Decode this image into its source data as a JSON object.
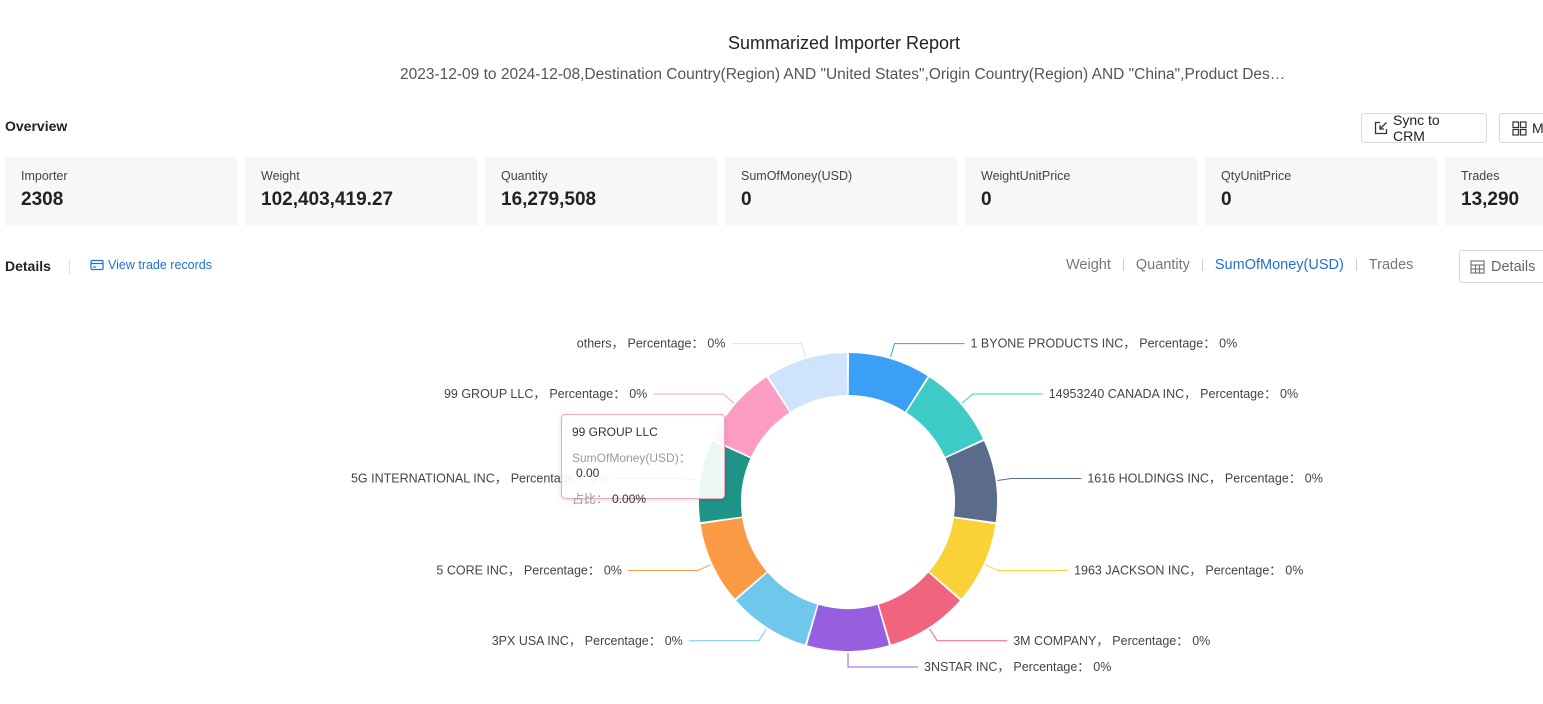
{
  "report": {
    "title": "Summarized Importer Report",
    "subtitle": "2023-12-09 to 2024-12-08,Destination Country(Region) AND \"United States\",Origin Country(Region) AND \"China\",Product Description AND ..."
  },
  "overview": {
    "label": "Overview"
  },
  "toolbar": {
    "sync_label": "Sync to CRM",
    "more_label": "M"
  },
  "stats": [
    {
      "label": "Importer",
      "value": "2308"
    },
    {
      "label": "Weight",
      "value": "102,403,419.27"
    },
    {
      "label": "Quantity",
      "value": "16,279,508"
    },
    {
      "label": "SumOfMoney(USD)",
      "value": "0"
    },
    {
      "label": "WeightUnitPrice",
      "value": "0"
    },
    {
      "label": "QtyUnitPrice",
      "value": "0"
    },
    {
      "label": "Trades",
      "value": "13,290"
    }
  ],
  "details": {
    "label": "Details",
    "view_link": "View trade records",
    "tabs": [
      "Weight",
      "Quantity",
      "SumOfMoney(USD)",
      "Trades"
    ],
    "active_tab": "SumOfMoney(USD)",
    "details_button": "Details"
  },
  "tooltip": {
    "title": "99 GROUP LLC",
    "row1_label": "SumOfMoney(USD)：",
    "row1_value": "0.00",
    "row2_label": "占比：",
    "row2_value": "0.00%"
  },
  "colors": {
    "accent": "#1f6fd8"
  },
  "chart_data": {
    "type": "pie",
    "subtype": "donut",
    "label_template": "Percentage：",
    "slices": [
      {
        "name": "1 BYONE PRODUCTS INC",
        "percentage": "0%",
        "value": 1,
        "color": "#3a9ff6"
      },
      {
        "name": "14953240 CANADA INC",
        "percentage": "0%",
        "value": 1,
        "color": "#3ecbc7"
      },
      {
        "name": "1616 HOLDINGS INC",
        "percentage": "0%",
        "value": 1,
        "color": "#5b6b8c"
      },
      {
        "name": "1963 JACKSON INC",
        "percentage": "0%",
        "value": 1,
        "color": "#f9d237"
      },
      {
        "name": "3M COMPANY",
        "percentage": "0%",
        "value": 1,
        "color": "#f0657d"
      },
      {
        "name": "3NSTAR INC",
        "percentage": "0%",
        "value": 1,
        "color": "#985ee0"
      },
      {
        "name": "3PX USA INC",
        "percentage": "0%",
        "value": 1,
        "color": "#6fc8ec"
      },
      {
        "name": "5 CORE INC",
        "percentage": "0%",
        "value": 1,
        "color": "#fa9a44"
      },
      {
        "name": "5G INTERNATIONAL INC",
        "percentage": "0%",
        "value": 1,
        "color": "#1e9489"
      },
      {
        "name": "99 GROUP LLC",
        "percentage": "0%",
        "value": 1,
        "color": "#fd9dc4"
      },
      {
        "name": "others",
        "percentage": "0%",
        "value": 1,
        "color": "#cfe4fc"
      }
    ]
  }
}
